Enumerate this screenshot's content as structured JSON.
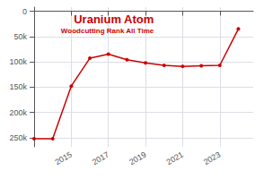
{
  "chart_data": {
    "type": "line",
    "title": "Uranium Atom",
    "subtitle": "Woodcutting Rank All Time",
    "x": [
      2013,
      2014,
      2015,
      2016,
      2017,
      2018,
      2019,
      2020,
      2021,
      2022,
      2023,
      2024
    ],
    "values": [
      252000,
      252000,
      148000,
      93000,
      85000,
      96000,
      102000,
      107000,
      109000,
      108000,
      107000,
      35000
    ],
    "color": "#cc0000",
    "marker": "circle",
    "xlim": [
      2013.0,
      2024.8
    ],
    "xticks": [
      2015,
      2017,
      2019,
      2021,
      2023
    ],
    "ylim": [
      268000,
      -8000
    ],
    "yticks": [
      0,
      {
        "value": 50000,
        "label": "50k"
      },
      {
        "value": 100000,
        "label": "100k"
      },
      {
        "value": 150000,
        "label": "150k"
      },
      {
        "value": 200000,
        "label": "200k"
      },
      {
        "value": 250000,
        "label": "250k"
      }
    ],
    "grid": true
  }
}
